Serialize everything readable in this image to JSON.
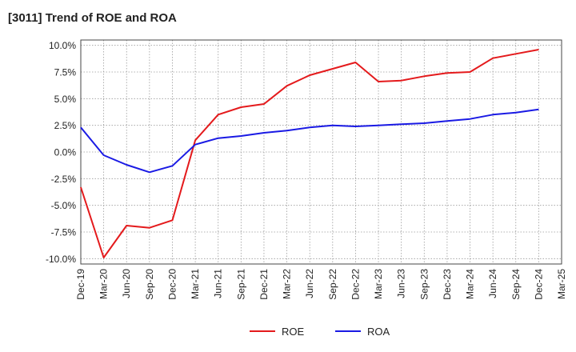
{
  "chart_data": {
    "type": "line",
    "title": "[3011]  Trend of ROE and ROA",
    "xlabel": "",
    "ylabel": "",
    "x": [
      "Dec-19",
      "Mar-20",
      "Jun-20",
      "Sep-20",
      "Dec-20",
      "Mar-21",
      "Jun-21",
      "Sep-21",
      "Dec-21",
      "Mar-22",
      "Jun-22",
      "Sep-22",
      "Dec-22",
      "Mar-23",
      "Jun-23",
      "Sep-23",
      "Dec-23",
      "Mar-24",
      "Jun-24",
      "Sep-24",
      "Dec-24",
      "Mar-25"
    ],
    "y_ticks": [
      "10.0%",
      "7.5%",
      "5.0%",
      "2.5%",
      "0.0%",
      "-2.5%",
      "-5.0%",
      "-7.5%",
      "-10.0%"
    ],
    "y_tick_values": [
      10,
      7.5,
      5,
      2.5,
      0,
      -2.5,
      -5,
      -7.5,
      -10
    ],
    "ylim": [
      -10.5,
      10.5
    ],
    "grid": true,
    "legend_position": "bottom",
    "series": [
      {
        "name": "ROE",
        "color": "#e41a1c",
        "values": [
          -3.3,
          -9.9,
          -6.9,
          -7.1,
          -6.4,
          1.1,
          3.5,
          4.2,
          4.5,
          6.2,
          7.2,
          7.8,
          8.4,
          6.6,
          6.7,
          7.1,
          7.4,
          7.5,
          8.8,
          9.2,
          9.6,
          null
        ]
      },
      {
        "name": "ROA",
        "color": "#1a1ae4",
        "values": [
          2.3,
          -0.3,
          -1.2,
          -1.9,
          -1.3,
          0.7,
          1.3,
          1.5,
          1.8,
          2.0,
          2.3,
          2.5,
          2.4,
          2.5,
          2.6,
          2.7,
          2.9,
          3.1,
          3.5,
          3.7,
          4.0,
          null
        ]
      }
    ]
  }
}
